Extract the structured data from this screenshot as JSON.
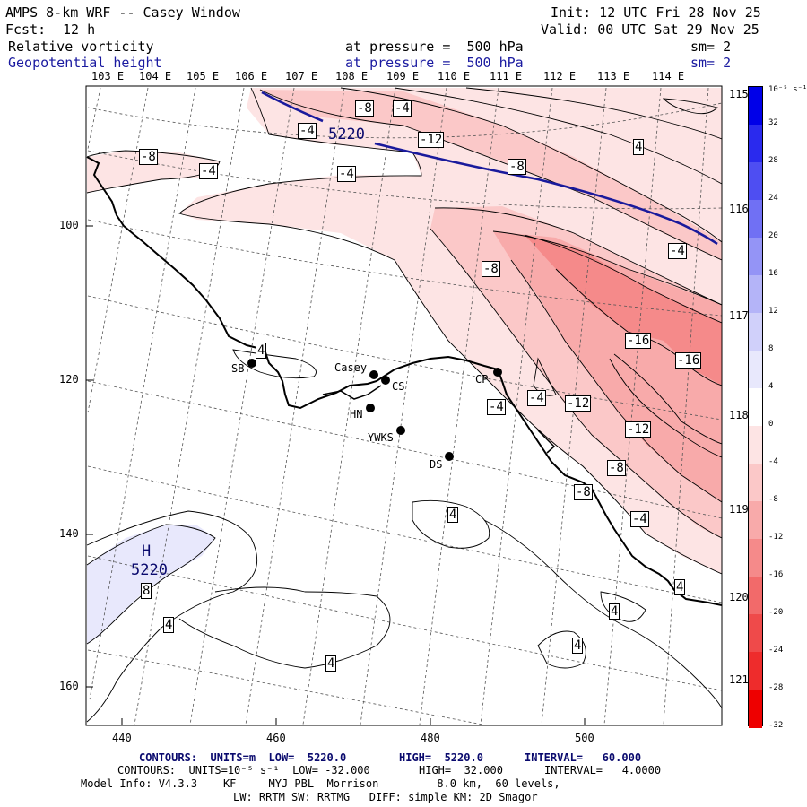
{
  "header": {
    "title": "AMPS 8-km WRF -- Casey Window",
    "init": "Init: 12 UTC Fri 28 Nov 25",
    "fcst_label": "Fcst:",
    "fcst_value": "12 h",
    "valid": "Valid: 00 UTC Sat 29 Nov 25",
    "field1": "Relative vorticity",
    "field1_level": "at pressure =  500 hPa",
    "field1_sm": "sm= 2",
    "field2": "Geopotential height",
    "field2_level": "at pressure =  500 hPa",
    "field2_sm": "sm= 2"
  },
  "colorbar": {
    "units": "10⁻⁵ s⁻¹",
    "labels": [
      "32",
      "28",
      "24",
      "20",
      "16",
      "12",
      "8",
      "4",
      "0",
      "-4",
      "-8",
      "-12",
      "-16",
      "-20",
      "-24",
      "-28",
      "-32"
    ],
    "colors": [
      "#0000e8",
      "#2a2aee",
      "#4e4ef2",
      "#7070f4",
      "#9494f6",
      "#b4b4f8",
      "#d0d0fa",
      "#e8e8fc",
      "#ffffff",
      "#fde4e4",
      "#fbc8c8",
      "#f8aaaa",
      "#f58a8a",
      "#f26a6a",
      "#ef4a4a",
      "#ee2c2c",
      "#ee0000"
    ]
  },
  "axes": {
    "top_lon": [
      "103 E",
      "104 E",
      "105 E",
      "106 E",
      "107 E",
      "108 E",
      "109 E",
      "110 E",
      "111 E",
      "112 E",
      "113 E",
      "114 E"
    ],
    "right_lon": [
      "115 E",
      "116 E",
      "117 E",
      "118 E",
      "119 E",
      "120 E",
      "121 E"
    ],
    "x_ticks": [
      "440",
      "460",
      "480",
      "500"
    ],
    "y_ticks": [
      "100",
      "120",
      "140",
      "160"
    ]
  },
  "stations": [
    {
      "code": "SB"
    },
    {
      "code": "Casey"
    },
    {
      "code": "CS"
    },
    {
      "code": "HN"
    },
    {
      "code": "YWKS"
    },
    {
      "code": "DS"
    },
    {
      "code": "CP"
    }
  ],
  "contour_labels": [
    "-8",
    "-4",
    "-4",
    "-12",
    "-8",
    "4",
    "-8",
    "-4",
    "-4",
    "-8",
    "-16",
    "-16",
    "-4",
    "-12",
    "-12",
    "-8",
    "-4",
    "-8",
    "-4",
    "-4",
    "4",
    "4",
    "4",
    "8",
    "4",
    "4",
    "4",
    "4"
  ],
  "height_labels": {
    "h1": "5220",
    "h2": "5220",
    "high": "H"
  },
  "footer": {
    "line1_a": "CONTOURS:  UNITS=m  LOW=  5220.0",
    "line1_b": "HIGH=  5220.0",
    "line1_c": "INTERVAL=   60.000",
    "line2_a": "CONTOURS:  UNITS=10⁻⁵ s⁻¹  LOW= -32.000",
    "line2_b": "HIGH=  32.000",
    "line2_c": "INTERVAL=   4.0000",
    "line3": "Model Info: V4.3.3    KF     MYJ PBL  Morrison         8.0 km,  60 levels,",
    "line4": "LW: RRTM SW: RRTMG   DIFF: simple KM: 2D Smagor"
  }
}
